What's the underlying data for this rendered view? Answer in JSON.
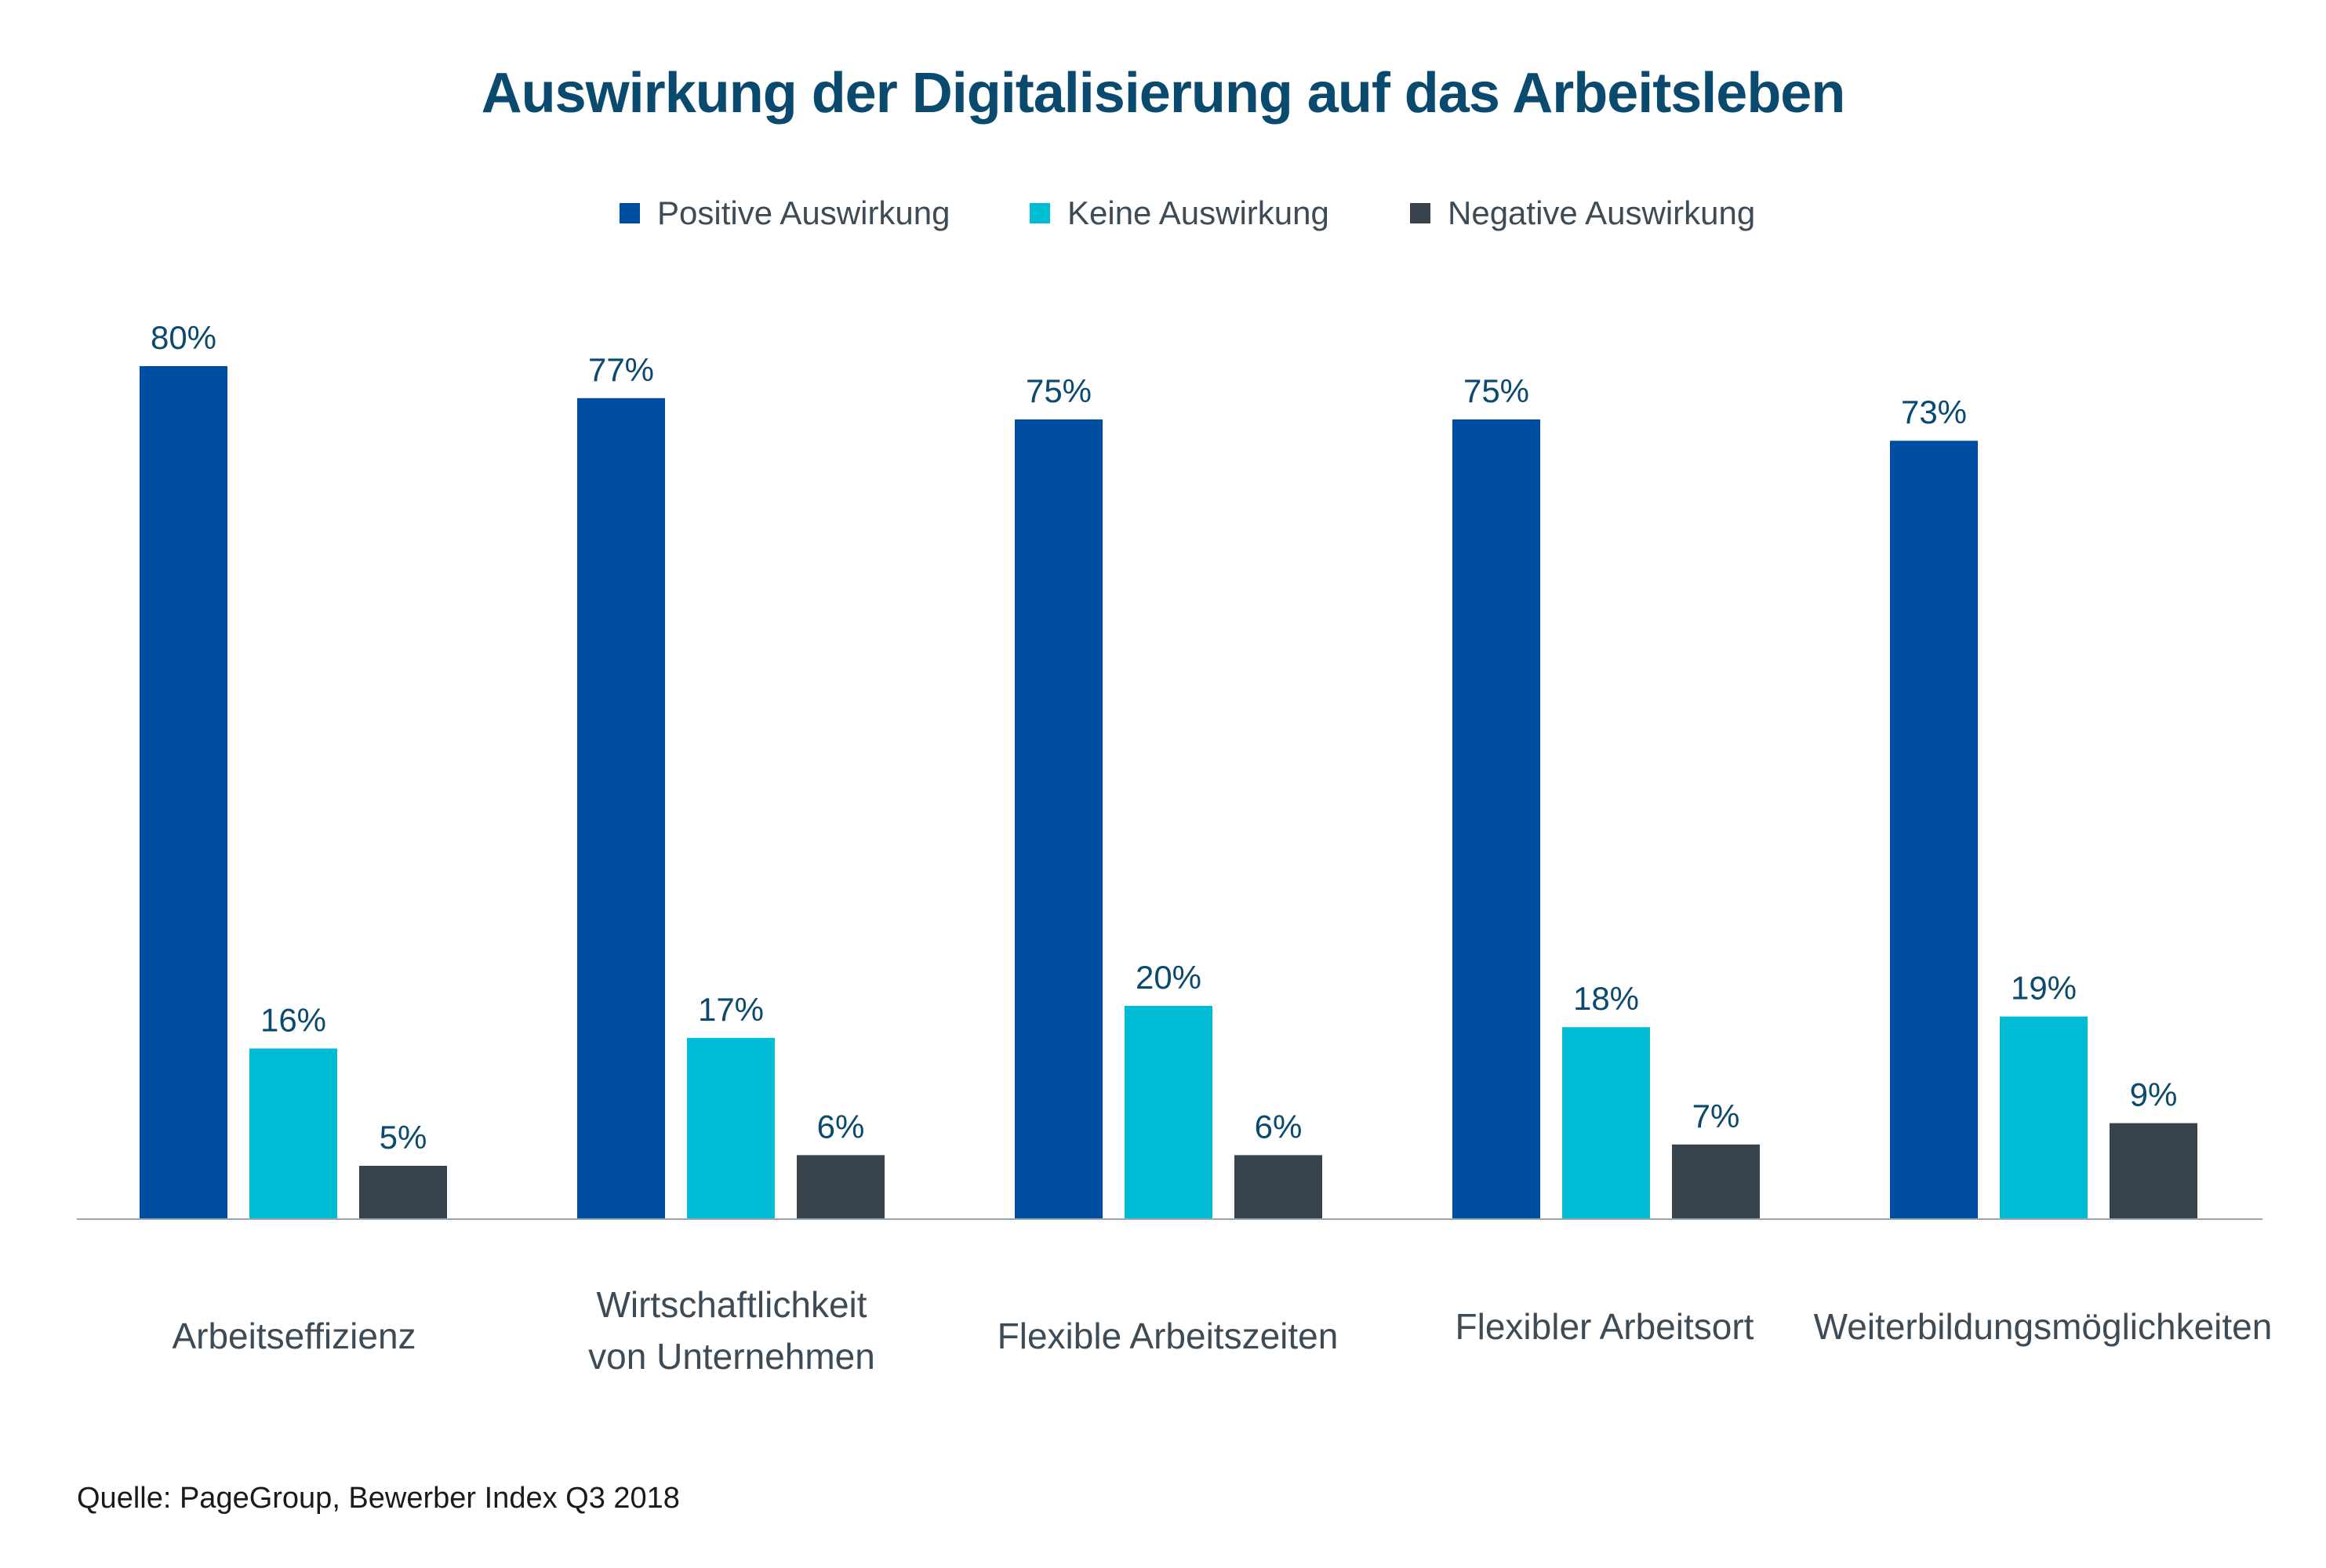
{
  "title": "Auswirkung der Digitalisierung auf das Arbeitsleben",
  "legend": [
    {
      "label": "Positive Auswirkung",
      "color": "#004ea2"
    },
    {
      "label": "Keine Auswirkung",
      "color": "#00bcd4"
    },
    {
      "label": "Negative Auswirkung",
      "color": "#37434d"
    }
  ],
  "source": "Quelle: PageGroup, Bewerber Index Q3 2018",
  "chart_data": {
    "type": "bar",
    "title": "Auswirkung der Digitalisierung auf das Arbeitsleben",
    "xlabel": "",
    "ylabel": "",
    "ylim": [
      0,
      80
    ],
    "grid": false,
    "legend_position": "top-center",
    "value_suffix": "%",
    "categories": [
      [
        "Arbeitseffizienz"
      ],
      [
        "Wirtschaftlichkeit",
        "von Unternehmen"
      ],
      [
        "Flexible Arbeitszeiten"
      ],
      [
        "Flexibler Arbeitsort"
      ],
      [
        "Weiterbildungsmöglichkeiten"
      ]
    ],
    "series": [
      {
        "name": "Positive Auswirkung",
        "color": "#004ea2",
        "values": [
          80,
          77,
          75,
          75,
          73
        ],
        "labels": [
          "80%",
          "77%",
          "75%",
          "75%",
          "73%"
        ]
      },
      {
        "name": "Keine Auswirkung",
        "color": "#00bcd4",
        "values": [
          16,
          17,
          20,
          18,
          19
        ],
        "labels": [
          "16%",
          "17%",
          "20%",
          "18%",
          "19%"
        ]
      },
      {
        "name": "Negative Auswirkung",
        "color": "#37434d",
        "values": [
          5,
          6,
          6,
          7,
          9
        ],
        "labels": [
          "5%",
          "6%",
          "6%",
          "7%",
          "9%"
        ]
      }
    ]
  }
}
